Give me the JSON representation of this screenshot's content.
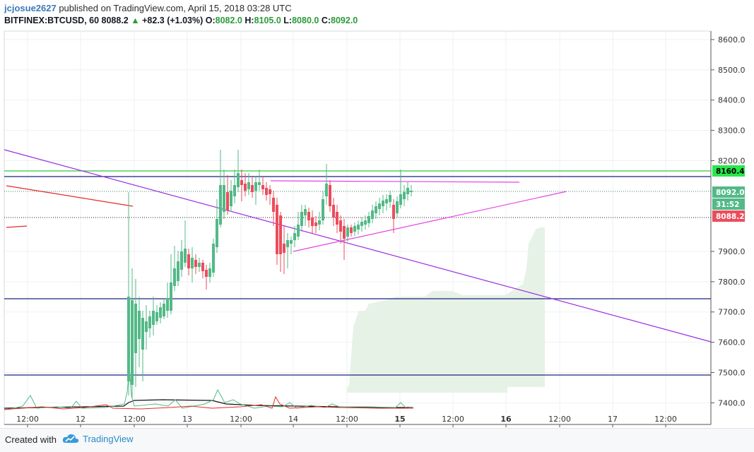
{
  "header": {
    "author": "jcjosue2627",
    "published_text": " published on TradingView.com, April 15, 2018 03:28 UTC",
    "symbol": "BITFINEX:BTCUSD, 60",
    "last": "8088.2",
    "change_arrow": "▲",
    "change": "+82.3 (+1.03%)",
    "o_label": "O:",
    "o_value": "8082.0",
    "h_label": "H:",
    "h_value": "8105.0",
    "l_label": "L:",
    "l_value": "8080.0",
    "c_label": "C:",
    "c_value": "8092.0"
  },
  "price_axis": {
    "ticks": [
      "8600.0",
      "8500.0",
      "8400.0",
      "8300.0",
      "8200.0",
      "7900.0",
      "7800.0",
      "7700.0",
      "7600.0",
      "7500.0",
      "7400.0"
    ],
    "tick_values": [
      8600,
      8500,
      8400,
      8300,
      8200,
      7900,
      7800,
      7700,
      7600,
      7500,
      7400
    ],
    "labels": {
      "green_line": "8160.4",
      "close": "8092.0",
      "countdown": "31:52",
      "last": "8088.2"
    }
  },
  "time_axis": {
    "labels": [
      "12:00",
      "12",
      "12:00",
      "13",
      "12:00",
      "14",
      "12:00",
      "15",
      "12:00",
      "16",
      "12:00",
      "17",
      "12:00"
    ],
    "bold": [
      false,
      false,
      false,
      false,
      false,
      false,
      false,
      true,
      false,
      true,
      false,
      false,
      false
    ]
  },
  "colors": {
    "up": "#53b987",
    "down": "#eb4d5c",
    "purple": "#9b30e0",
    "magenta": "#e542e5",
    "green_level": "#2ecc40",
    "navy_level": "#1a237e",
    "cloud": "#e4f1e4",
    "grid": "#eef0f3"
  },
  "footer": {
    "created_with": "Created with",
    "brand": "TradingView",
    "logo_icon": "tradingview-cloud-icon"
  }
}
